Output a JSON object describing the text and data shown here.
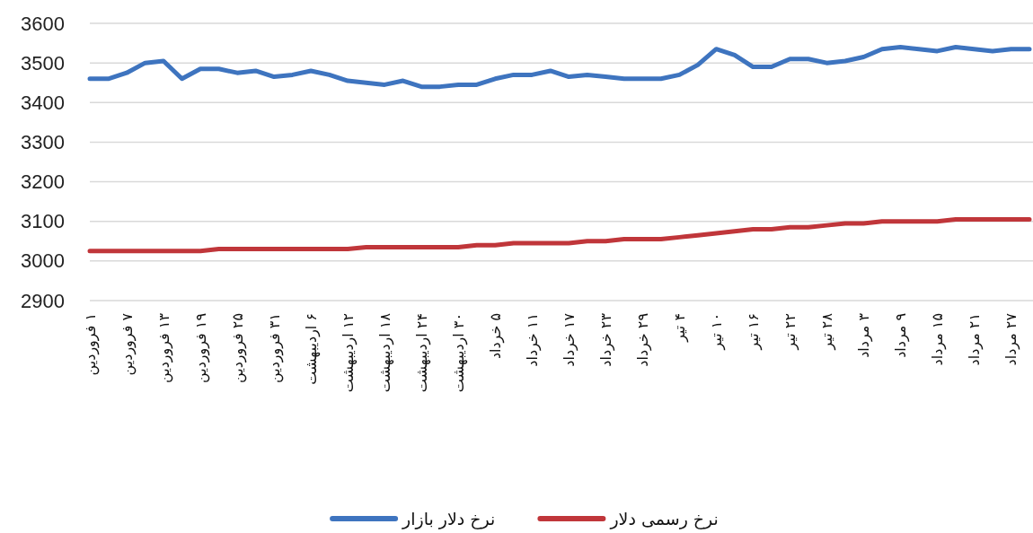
{
  "chart_data": {
    "type": "line",
    "categories": [
      "۱ فروردین",
      null,
      "۷ فروردین",
      null,
      "۱۳ فروردین",
      null,
      "۱۹ فروردین",
      null,
      "۲۵ فروردین",
      null,
      "۳۱ فروردین",
      null,
      "۶ اردیبهشت",
      null,
      "۱۲ اردیبهشت",
      null,
      "۱۸ اردیبهشت",
      null,
      "۲۴ اردیبهشت",
      null,
      "۳۰ اردیبهشت",
      null,
      "۵ خرداد",
      null,
      "۱۱ خرداد",
      null,
      "۱۷ خرداد",
      null,
      "۲۳ خرداد",
      null,
      "۲۹ خرداد",
      null,
      "۴ تیر",
      null,
      "۱۰ تیر",
      null,
      "۱۶ تیر",
      null,
      "۲۲ تیر",
      null,
      "۲۸ تیر",
      null,
      "۳ مرداد",
      null,
      "۹ مرداد",
      null,
      "۱۵ مرداد",
      null,
      "۲۱ مرداد",
      null,
      "۲۷ مرداد",
      null
    ],
    "series": [
      {
        "name": "نرخ دلار بازار",
        "color": "#3e74bf",
        "values": [
          3460,
          3460,
          3475,
          3500,
          3505,
          3460,
          3485,
          3485,
          3475,
          3480,
          3465,
          3470,
          3480,
          3470,
          3455,
          3450,
          3445,
          3455,
          3440,
          3440,
          3445,
          3445,
          3460,
          3470,
          3470,
          3480,
          3465,
          3470,
          3465,
          3460,
          3460,
          3460,
          3470,
          3495,
          3535,
          3520,
          3490,
          3490,
          3510,
          3510,
          3500,
          3505,
          3515,
          3535,
          3540,
          3535,
          3530,
          3540,
          3535,
          3530,
          3535,
          3535
        ]
      },
      {
        "name": "نرخ رسمی دلار",
        "color": "#c0363a",
        "values": [
          3025,
          3025,
          3025,
          3025,
          3025,
          3025,
          3025,
          3030,
          3030,
          3030,
          3030,
          3030,
          3030,
          3030,
          3030,
          3035,
          3035,
          3035,
          3035,
          3035,
          3035,
          3040,
          3040,
          3045,
          3045,
          3045,
          3045,
          3050,
          3050,
          3055,
          3055,
          3055,
          3060,
          3065,
          3070,
          3075,
          3080,
          3080,
          3085,
          3085,
          3090,
          3095,
          3095,
          3100,
          3100,
          3100,
          3100,
          3105,
          3105,
          3105,
          3105,
          3105
        ]
      }
    ],
    "ylim": [
      2900,
      3600
    ],
    "yticks": [
      2900,
      3000,
      3100,
      3200,
      3300,
      3400,
      3500,
      3600
    ],
    "grid": "y",
    "legend": "bottom"
  }
}
